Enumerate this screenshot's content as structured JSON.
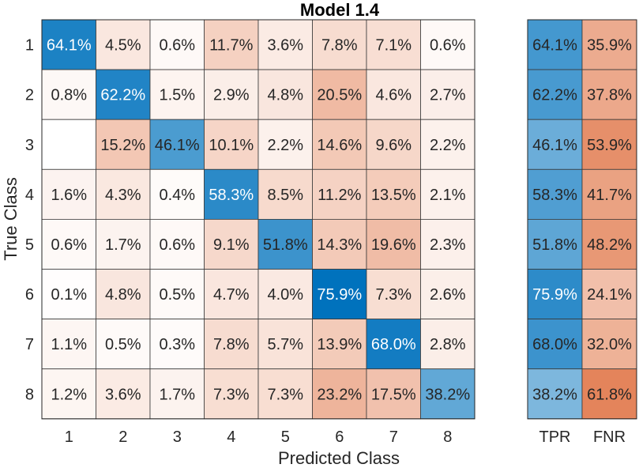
{
  "chart_data": {
    "type": "heatmap",
    "title": "Model 1.4",
    "xlabel": "Predicted Class",
    "ylabel": "True Class",
    "classes": [
      "1",
      "2",
      "3",
      "4",
      "5",
      "6",
      "7",
      "8"
    ],
    "unit": "%",
    "matrix": [
      [
        64.1,
        4.5,
        0.6,
        11.7,
        3.6,
        7.8,
        7.1,
        0.6
      ],
      [
        0.8,
        62.2,
        1.5,
        2.9,
        4.8,
        20.5,
        4.6,
        2.7
      ],
      [
        null,
        15.2,
        46.1,
        10.1,
        2.2,
        14.6,
        9.6,
        2.2
      ],
      [
        1.6,
        4.3,
        0.4,
        58.3,
        8.5,
        11.2,
        13.5,
        2.1
      ],
      [
        0.6,
        1.7,
        0.6,
        9.1,
        51.8,
        14.3,
        19.6,
        2.3
      ],
      [
        0.1,
        4.8,
        0.5,
        4.7,
        4.0,
        75.9,
        7.3,
        2.6
      ],
      [
        1.1,
        0.5,
        0.3,
        7.8,
        5.7,
        13.9,
        68.0,
        2.8
      ],
      [
        1.2,
        3.6,
        1.7,
        7.3,
        7.3,
        23.2,
        17.5,
        38.2
      ]
    ],
    "row_summary": {
      "columns": [
        "TPR",
        "FNR"
      ],
      "values": [
        [
          64.1,
          35.9
        ],
        [
          62.2,
          37.8
        ],
        [
          46.1,
          53.9
        ],
        [
          58.3,
          41.7
        ],
        [
          51.8,
          48.2
        ],
        [
          75.9,
          24.1
        ],
        [
          68.0,
          32.0
        ],
        [
          38.2,
          61.8
        ]
      ]
    },
    "colors": {
      "diagonal": "#0072BD",
      "off_diagonal": "#D95319"
    }
  }
}
